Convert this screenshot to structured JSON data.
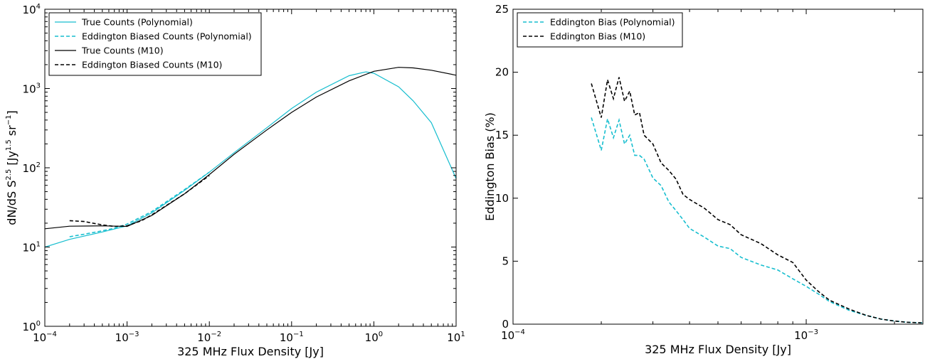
{
  "chart_data": [
    {
      "type": "line",
      "xlabel": "325 MHz Flux Density [Jy]",
      "ylabel_parts": [
        "dN/dS S",
        "2.5",
        "  [Jy",
        "1.5",
        " sr",
        "−1",
        "]"
      ],
      "xscale": "log",
      "yscale": "log",
      "xlim": [
        0.0001,
        10
      ],
      "ylim": [
        1,
        10000
      ],
      "x_ticks": [
        {
          "value": 0.0001,
          "base": "10",
          "exp": "-4"
        },
        {
          "value": 0.001,
          "base": "10",
          "exp": "-3"
        },
        {
          "value": 0.01,
          "base": "10",
          "exp": "-2"
        },
        {
          "value": 0.1,
          "base": "10",
          "exp": "-1"
        },
        {
          "value": 1,
          "base": "10",
          "exp": "0"
        },
        {
          "value": 10,
          "base": "10",
          "exp": "1"
        }
      ],
      "y_ticks": [
        {
          "value": 1,
          "base": "10",
          "exp": "0"
        },
        {
          "value": 10,
          "base": "10",
          "exp": "1"
        },
        {
          "value": 100,
          "base": "10",
          "exp": "2"
        },
        {
          "value": 1000,
          "base": "10",
          "exp": "3"
        },
        {
          "value": 10000,
          "base": "10",
          "exp": "4"
        }
      ],
      "legend": "top-left",
      "grid": false,
      "series": [
        {
          "name": "True Counts (Polynomial)",
          "color": "#17becf",
          "dash": "solid",
          "x": [
            0.0001,
            0.0002,
            0.0005,
            0.001,
            0.002,
            0.005,
            0.01,
            0.02,
            0.05,
            0.1,
            0.2,
            0.5,
            0.8,
            1,
            2,
            3,
            5,
            10
          ],
          "y": [
            10,
            12.5,
            15.5,
            18.5,
            27,
            52,
            88,
            155,
            320,
            560,
            900,
            1450,
            1620,
            1560,
            1050,
            700,
            370,
            73
          ]
        },
        {
          "name": "Eddington Biased Counts (Polynomial)",
          "color": "#17becf",
          "dash": "dashed",
          "x": [
            0.0002,
            0.0003,
            0.0005,
            0.0007,
            0.001,
            0.002,
            0.005,
            0.01
          ],
          "y": [
            13.5,
            14.5,
            16,
            17.3,
            19.5,
            28,
            53,
            88
          ]
        },
        {
          "name": "True Counts (M10)",
          "color": "#000000",
          "dash": "solid",
          "x": [
            0.0001,
            0.0002,
            0.0005,
            0.001,
            0.002,
            0.005,
            0.01,
            0.02,
            0.05,
            0.1,
            0.2,
            0.5,
            1,
            2,
            3,
            5,
            10
          ],
          "y": [
            17,
            18.3,
            18.5,
            18.2,
            25,
            47,
            82,
            148,
            300,
            500,
            780,
            1250,
            1650,
            1850,
            1820,
            1700,
            1470
          ]
        },
        {
          "name": "Eddington Biased Counts (M10)",
          "color": "#000000",
          "dash": "dashed",
          "x": [
            0.0002,
            0.0003,
            0.0005,
            0.0007,
            0.001,
            0.0015,
            0.002,
            0.005,
            0.01
          ],
          "y": [
            21.5,
            21,
            19,
            18.2,
            18.5,
            21.5,
            25.5,
            47,
            80
          ]
        }
      ]
    },
    {
      "type": "line",
      "xlabel": "325 MHz Flux Density [Jy]",
      "ylabel": "Eddington Bias (%)",
      "xscale": "log",
      "yscale": "linear",
      "xlim": [
        0.0001,
        0.0025
      ],
      "ylim": [
        0,
        25
      ],
      "x_ticks": [
        {
          "value": 0.0001,
          "base": "10",
          "exp": "-4"
        },
        {
          "value": 0.001,
          "base": "10",
          "exp": "-3"
        }
      ],
      "y_ticks": [
        0,
        5,
        10,
        15,
        20,
        25
      ],
      "legend": "top-left",
      "grid": false,
      "series": [
        {
          "name": "Eddington Bias (Polynomial)",
          "color": "#17becf",
          "dash": "dashed",
          "x": [
            0.000185,
            0.0002,
            0.00021,
            0.00022,
            0.00023,
            0.00024,
            0.00025,
            0.00026,
            0.00027,
            0.00028,
            0.0003,
            0.00032,
            0.00034,
            0.00036,
            0.00038,
            0.0004,
            0.00045,
            0.0005,
            0.00055,
            0.0006,
            0.0007,
            0.0008,
            0.0009,
            0.001,
            0.0011,
            0.0012,
            0.0014,
            0.0016,
            0.0018,
            0.002,
            0.0022,
            0.0025
          ],
          "y": [
            16.4,
            13.8,
            16.3,
            14.8,
            16.2,
            14.3,
            15.0,
            13.4,
            13.4,
            13.1,
            11.6,
            11.0,
            9.7,
            9.0,
            8.3,
            7.6,
            6.9,
            6.2,
            6.0,
            5.3,
            4.7,
            4.3,
            3.6,
            3.0,
            2.4,
            1.8,
            1.1,
            0.7,
            0.4,
            0.25,
            0.15,
            0.1
          ]
        },
        {
          "name": "Eddington Bias (M10)",
          "color": "#000000",
          "dash": "dashed",
          "x": [
            0.000185,
            0.0002,
            0.00021,
            0.00022,
            0.00023,
            0.00024,
            0.00025,
            0.00026,
            0.00027,
            0.00028,
            0.0003,
            0.00032,
            0.00034,
            0.00036,
            0.00038,
            0.0004,
            0.00045,
            0.0005,
            0.00055,
            0.0006,
            0.0007,
            0.0008,
            0.0009,
            0.001,
            0.0011,
            0.0012,
            0.0014,
            0.0016,
            0.0018,
            0.002,
            0.0022,
            0.0025
          ],
          "y": [
            19.1,
            16.4,
            19.4,
            17.9,
            19.6,
            17.7,
            18.5,
            16.6,
            16.8,
            15.0,
            14.3,
            12.8,
            12.2,
            11.5,
            10.3,
            9.9,
            9.2,
            8.3,
            7.9,
            7.1,
            6.4,
            5.5,
            4.9,
            3.5,
            2.6,
            1.9,
            1.2,
            0.7,
            0.4,
            0.25,
            0.15,
            0.1
          ]
        }
      ]
    }
  ]
}
